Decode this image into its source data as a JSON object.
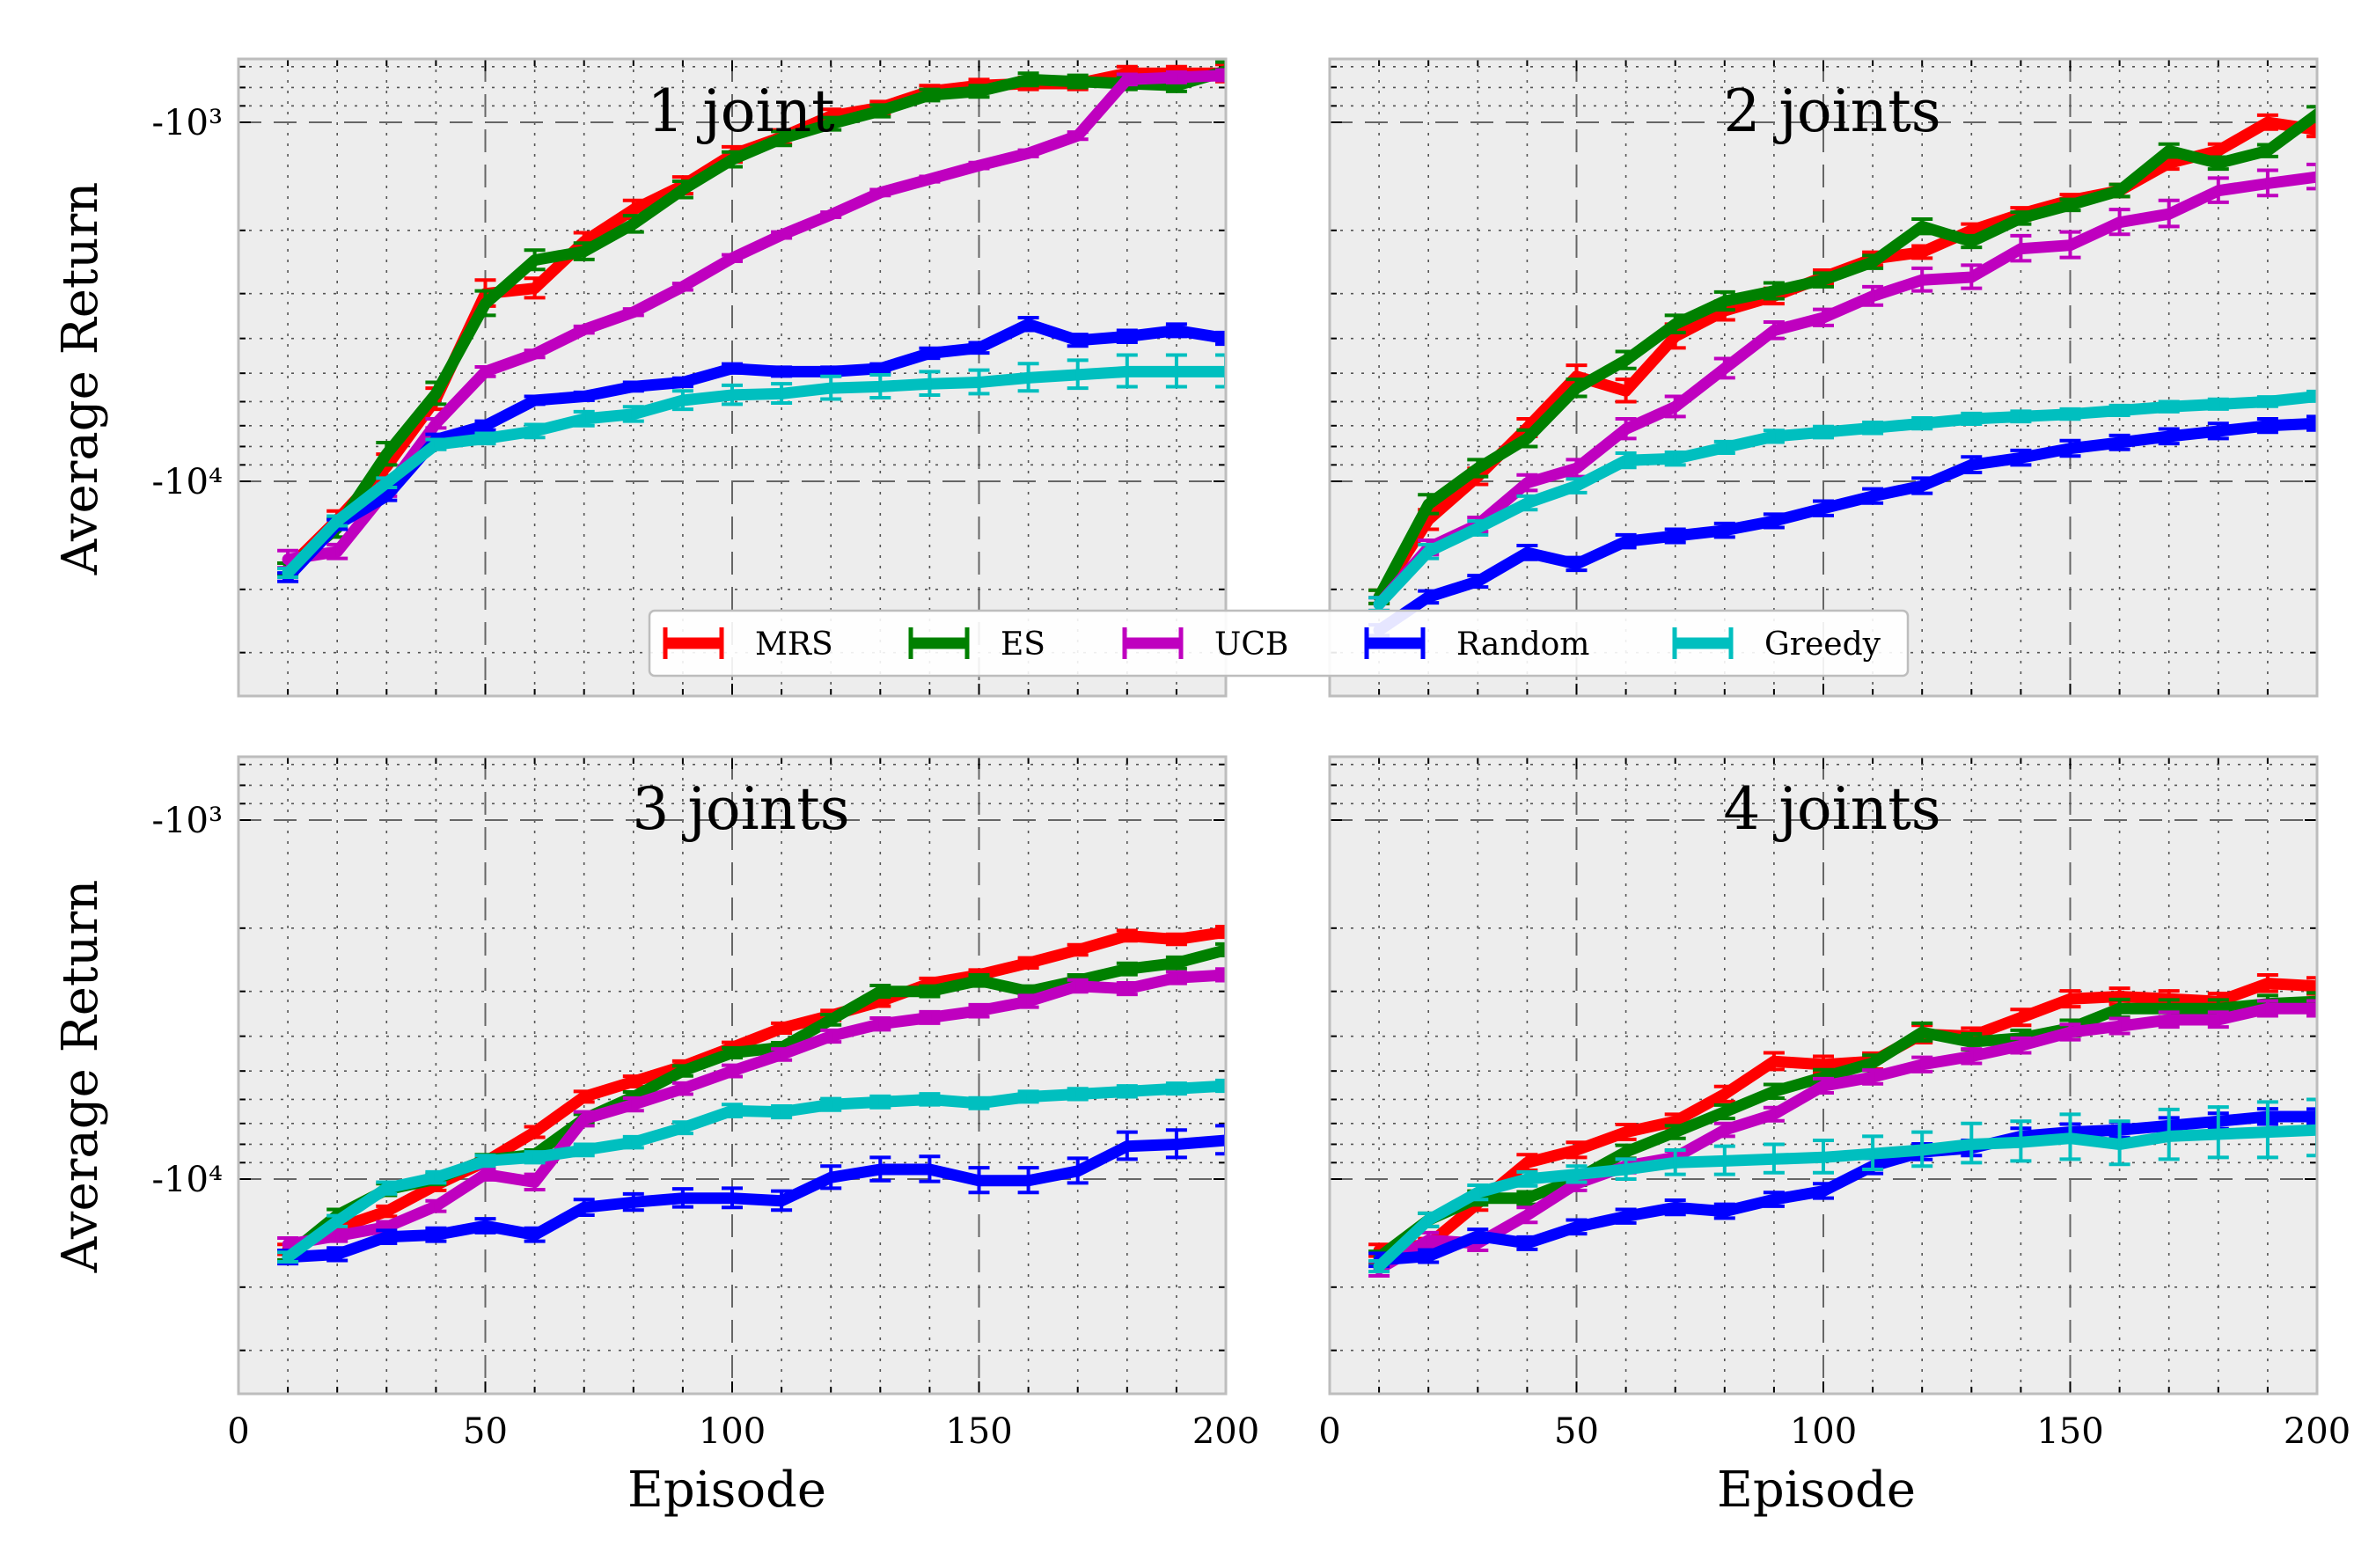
{
  "figure": {
    "x_label": "Episode",
    "y_label": "Average Return"
  },
  "legend": [
    {
      "name": "MRS",
      "color": "#ff0000"
    },
    {
      "name": "ES",
      "color": "#008000"
    },
    {
      "name": "UCB",
      "color": "#bf00bf"
    },
    {
      "name": "Random",
      "color": "#0000ff"
    },
    {
      "name": "Greedy",
      "color": "#00bfbf"
    }
  ],
  "chart_data": [
    {
      "type": "line",
      "title": "1 joint",
      "xlim": [
        0,
        200
      ],
      "x_ticks": [
        "0",
        "50",
        "100",
        "150",
        "200"
      ],
      "y_scale": "log (negative)",
      "y_ticks": [
        "-10³",
        "-10⁴"
      ],
      "grid": true,
      "x": [
        10,
        20,
        30,
        40,
        50,
        60,
        70,
        80,
        90,
        100,
        110,
        120,
        130,
        140,
        150,
        160,
        170,
        180,
        190,
        200
      ],
      "series": [
        {
          "name": "MRS",
          "values": [
            -17500,
            -12800,
            -9100,
            -5900,
            -3000,
            -2900,
            -2150,
            -1750,
            -1500,
            -1230,
            -1100,
            -960,
            -910,
            -820,
            -790,
            -780,
            -780,
            -730,
            -730,
            -730
          ],
          "err": [
            600,
            700,
            700,
            400,
            250,
            180,
            120,
            100,
            80,
            60,
            50,
            40,
            35,
            30,
            30,
            30,
            30,
            30,
            30,
            40
          ]
        },
        {
          "name": "ES",
          "values": [
            -17500,
            -13500,
            -8400,
            -5700,
            -3200,
            -2420,
            -2290,
            -1920,
            -1540,
            -1270,
            -1110,
            -1010,
            -930,
            -840,
            -820,
            -760,
            -770,
            -780,
            -790,
            -720
          ],
          "err": [
            600,
            800,
            600,
            400,
            250,
            150,
            120,
            100,
            80,
            60,
            50,
            40,
            35,
            30,
            30,
            30,
            30,
            30,
            30,
            40
          ]
        },
        {
          "name": "UCB",
          "values": [
            -16500,
            -15700,
            -10600,
            -6900,
            -4950,
            -4420,
            -3780,
            -3380,
            -2870,
            -2390,
            -2060,
            -1810,
            -1570,
            -1440,
            -1320,
            -1220,
            -1090,
            -760,
            -750,
            -740
          ],
          "err": [
            900,
            700,
            400,
            200,
            150,
            100,
            80,
            70,
            60,
            50,
            40,
            30,
            30,
            25,
            25,
            25,
            25,
            25,
            25,
            25
          ]
        },
        {
          "name": "Random",
          "values": [
            -18500,
            -13200,
            -11000,
            -7650,
            -7000,
            -5950,
            -5800,
            -5450,
            -5300,
            -4850,
            -4950,
            -4950,
            -4850,
            -4400,
            -4250,
            -3650,
            -4050,
            -3950,
            -3800,
            -4000
          ],
          "err": [
            500,
            400,
            300,
            250,
            200,
            150,
            150,
            150,
            140,
            140,
            140,
            140,
            140,
            140,
            140,
            150,
            150,
            150,
            150,
            150
          ]
        },
        {
          "name": "Greedy",
          "values": [
            -18000,
            -12900,
            -10100,
            -7900,
            -7600,
            -7250,
            -6700,
            -6500,
            -5950,
            -5750,
            -5700,
            -5500,
            -5450,
            -5350,
            -5300,
            -5150,
            -5050,
            -4950,
            -4950,
            -4950
          ],
          "err": [
            500,
            400,
            300,
            250,
            250,
            300,
            300,
            300,
            350,
            350,
            350,
            400,
            400,
            400,
            400,
            450,
            450,
            500,
            500,
            500
          ]
        }
      ]
    },
    {
      "type": "line",
      "title": "2 joints",
      "xlim": [
        0,
        200
      ],
      "x_ticks": [
        "0",
        "50",
        "100",
        "150",
        "200"
      ],
      "y_scale": "log (negative)",
      "y_ticks": [],
      "grid": true,
      "x": [
        10,
        20,
        30,
        40,
        50,
        60,
        70,
        80,
        90,
        100,
        110,
        120,
        130,
        140,
        150,
        160,
        170,
        180,
        190,
        200
      ],
      "series": [
        {
          "name": "MRS",
          "values": [
            -21000,
            -12800,
            -9700,
            -7100,
            -5100,
            -5600,
            -3950,
            -3350,
            -3050,
            -2700,
            -2400,
            -2300,
            -2000,
            -1800,
            -1650,
            -1550,
            -1300,
            -1200,
            -1000,
            -1050
          ],
          "err": [
            900,
            800,
            500,
            400,
            350,
            400,
            300,
            200,
            150,
            120,
            100,
            90,
            80,
            70,
            60,
            60,
            50,
            50,
            45,
            45
          ]
        },
        {
          "name": "ES",
          "values": [
            -21000,
            -11600,
            -9200,
            -7600,
            -5500,
            -4600,
            -3650,
            -3150,
            -2950,
            -2750,
            -2450,
            -1950,
            -2150,
            -1850,
            -1700,
            -1550,
            -1200,
            -1300,
            -1200,
            -950
          ],
          "err": [
            900,
            700,
            500,
            400,
            300,
            250,
            200,
            180,
            150,
            120,
            100,
            90,
            80,
            70,
            60,
            60,
            50,
            50,
            45,
            45
          ]
        },
        {
          "name": "UCB",
          "values": [
            -22000,
            -15300,
            -13200,
            -10100,
            -9200,
            -7150,
            -6200,
            -4850,
            -3800,
            -3500,
            -3050,
            -2750,
            -2700,
            -2250,
            -2200,
            -1900,
            -1800,
            -1550,
            -1480,
            -1420
          ],
          "err": [
            900,
            700,
            600,
            500,
            500,
            450,
            400,
            300,
            200,
            180,
            180,
            200,
            200,
            180,
            180,
            150,
            150,
            120,
            120,
            110
          ]
        },
        {
          "name": "Random",
          "values": [
            -26000,
            -21000,
            -19000,
            -15800,
            -17000,
            -14700,
            -14200,
            -13700,
            -12900,
            -11900,
            -11000,
            -10300,
            -9000,
            -8600,
            -8100,
            -7800,
            -7500,
            -7250,
            -7000,
            -6900
          ],
          "err": [
            900,
            800,
            700,
            700,
            700,
            600,
            600,
            600,
            550,
            550,
            500,
            500,
            450,
            400,
            400,
            350,
            350,
            350,
            300,
            300
          ]
        },
        {
          "name": "Greedy",
          "values": [
            -22000,
            -15700,
            -13500,
            -11500,
            -10300,
            -8750,
            -8650,
            -8050,
            -7500,
            -7300,
            -7100,
            -6900,
            -6700,
            -6600,
            -6500,
            -6350,
            -6200,
            -6100,
            -6000,
            -5800
          ],
          "err": [
            900,
            700,
            600,
            500,
            450,
            400,
            350,
            300,
            280,
            260,
            250,
            240,
            230,
            220,
            210,
            200,
            200,
            190,
            180,
            180
          ]
        }
      ]
    },
    {
      "type": "line",
      "title": "3 joints",
      "xlim": [
        0,
        200
      ],
      "x_ticks": [
        "0",
        "50",
        "100",
        "150",
        "200"
      ],
      "y_scale": "log (negative)",
      "y_ticks": [
        "-10³",
        "-10⁴"
      ],
      "grid": true,
      "x": [
        10,
        20,
        30,
        40,
        50,
        60,
        70,
        80,
        90,
        100,
        110,
        120,
        130,
        140,
        150,
        160,
        170,
        180,
        190,
        200
      ],
      "series": [
        {
          "name": "MRS",
          "values": [
            -15700,
            -13700,
            -12300,
            -10400,
            -8950,
            -7400,
            -5900,
            -5350,
            -4850,
            -4300,
            -3800,
            -3500,
            -3200,
            -2850,
            -2700,
            -2500,
            -2300,
            -2100,
            -2150,
            -2050
          ],
          "err": [
            500,
            450,
            400,
            350,
            300,
            250,
            200,
            180,
            160,
            140,
            120,
            110,
            100,
            90,
            85,
            80,
            75,
            70,
            70,
            70
          ]
        },
        {
          "name": "ES",
          "values": [
            -16300,
            -12600,
            -10700,
            -10000,
            -8850,
            -8550,
            -6800,
            -5900,
            -5000,
            -4450,
            -4300,
            -3600,
            -3000,
            -3000,
            -2800,
            -3000,
            -2800,
            -2600,
            -2500,
            -2300
          ],
          "err": [
            500,
            450,
            400,
            350,
            300,
            250,
            200,
            180,
            160,
            140,
            130,
            120,
            110,
            100,
            100,
            100,
            100,
            95,
            90,
            85
          ]
        },
        {
          "name": "UCB",
          "values": [
            -15200,
            -14400,
            -13600,
            -11900,
            -9700,
            -10200,
            -6800,
            -6200,
            -5600,
            -5000,
            -4500,
            -4000,
            -3700,
            -3550,
            -3400,
            -3200,
            -2900,
            -2950,
            -2750,
            -2700
          ],
          "err": [
            600,
            500,
            450,
            400,
            350,
            500,
            300,
            250,
            200,
            180,
            160,
            150,
            140,
            130,
            130,
            120,
            110,
            110,
            100,
            100
          ]
        },
        {
          "name": "Random",
          "values": [
            -16500,
            -16200,
            -14500,
            -14300,
            -13500,
            -14300,
            -12000,
            -11600,
            -11300,
            -11300,
            -11500,
            -9900,
            -9400,
            -9400,
            -10100,
            -10100,
            -9500,
            -8100,
            -8000,
            -7800
          ],
          "err": [
            700,
            650,
            600,
            600,
            600,
            600,
            600,
            600,
            650,
            700,
            700,
            700,
            700,
            750,
            800,
            800,
            750,
            700,
            700,
            700
          ]
        },
        {
          "name": "Greedy",
          "values": [
            -16500,
            -13100,
            -10600,
            -9900,
            -8900,
            -8700,
            -8300,
            -7900,
            -7200,
            -6450,
            -6500,
            -6200,
            -6100,
            -6000,
            -6150,
            -5900,
            -5800,
            -5700,
            -5600,
            -5500
          ],
          "err": [
            500,
            450,
            400,
            350,
            300,
            300,
            300,
            280,
            260,
            250,
            240,
            230,
            220,
            210,
            210,
            200,
            200,
            200,
            190,
            190
          ]
        }
      ]
    },
    {
      "type": "line",
      "title": "4 joints",
      "xlim": [
        0,
        200
      ],
      "x_ticks": [
        "0",
        "50",
        "100",
        "150",
        "200"
      ],
      "y_scale": "log (negative)",
      "y_ticks": [],
      "grid": true,
      "x": [
        10,
        20,
        30,
        40,
        50,
        60,
        70,
        80,
        90,
        100,
        110,
        120,
        130,
        140,
        150,
        160,
        170,
        180,
        190,
        200
      ],
      "series": [
        {
          "name": "MRS",
          "values": [
            -15800,
            -15200,
            -11700,
            -9000,
            -8300,
            -7400,
            -6900,
            -5800,
            -4700,
            -4800,
            -4700,
            -3950,
            -4000,
            -3550,
            -3150,
            -3100,
            -3150,
            -3200,
            -2850,
            -2900
          ],
          "err": [
            600,
            550,
            500,
            450,
            400,
            350,
            300,
            280,
            250,
            250,
            240,
            220,
            200,
            180,
            160,
            160,
            160,
            160,
            150,
            150
          ]
        },
        {
          "name": "ES",
          "values": [
            -16500,
            -13000,
            -11300,
            -11300,
            -10000,
            -8400,
            -7400,
            -6500,
            -5700,
            -5200,
            -4750,
            -3900,
            -4150,
            -4050,
            -3800,
            -3350,
            -3350,
            -3350,
            -3250,
            -3200
          ],
          "err": [
            600,
            550,
            500,
            450,
            400,
            350,
            300,
            280,
            250,
            240,
            230,
            220,
            210,
            200,
            190,
            190,
            180,
            180,
            170,
            170
          ]
        },
        {
          "name": "UCB",
          "values": [
            -17800,
            -14800,
            -15100,
            -12600,
            -10300,
            -9200,
            -8700,
            -7300,
            -6600,
            -5500,
            -5200,
            -4800,
            -4550,
            -4250,
            -3900,
            -3750,
            -3600,
            -3600,
            -3350,
            -3350
          ],
          "err": [
            800,
            700,
            700,
            600,
            450,
            400,
            350,
            300,
            280,
            250,
            230,
            220,
            210,
            200,
            190,
            180,
            170,
            170,
            160,
            160
          ]
        },
        {
          "name": "Random",
          "values": [
            -16800,
            -16400,
            -14400,
            -15100,
            -13600,
            -12700,
            -12000,
            -12300,
            -11400,
            -10800,
            -9200,
            -8400,
            -8200,
            -7600,
            -7400,
            -7300,
            -7100,
            -6900,
            -6700,
            -6700
          ],
          "err": [
            700,
            650,
            600,
            600,
            600,
            550,
            550,
            550,
            500,
            500,
            450,
            420,
            400,
            380,
            370,
            360,
            350,
            340,
            330,
            320
          ]
        },
        {
          "name": "Greedy",
          "values": [
            -17500,
            -13000,
            -10900,
            -10000,
            -9700,
            -9400,
            -9000,
            -8900,
            -8800,
            -8700,
            -8500,
            -8300,
            -8000,
            -7900,
            -7700,
            -8000,
            -7600,
            -7500,
            -7400,
            -7300
          ],
          "err": [
            600,
            550,
            500,
            450,
            500,
            600,
            700,
            800,
            800,
            900,
            900,
            900,
            1000,
            1000,
            1100,
            1100,
            1200,
            1200,
            1300,
            1300
          ]
        }
      ]
    }
  ]
}
